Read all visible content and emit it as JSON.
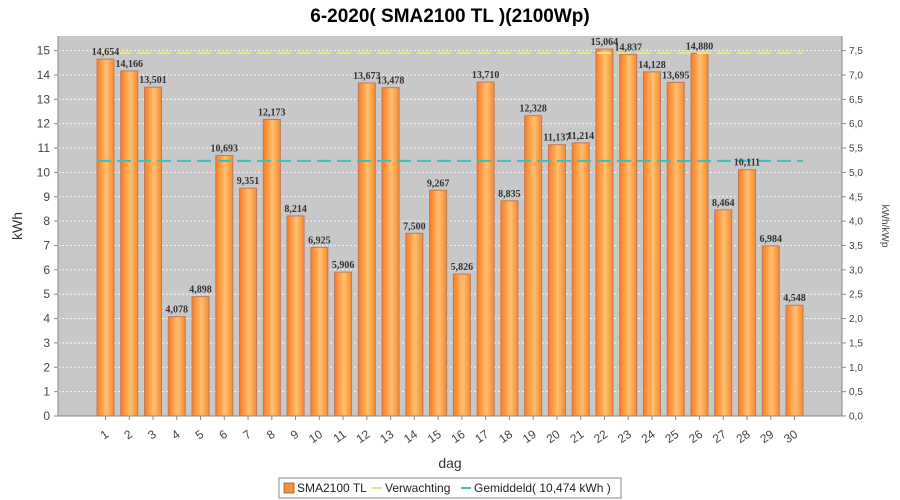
{
  "chart_data": {
    "type": "bar",
    "title": "6-2020( SMA2100 TL )(2100Wp)",
    "xlabel": "dag",
    "ylabel": "kWh",
    "ylabel_right": "kWh/kWp",
    "ylim": [
      0,
      15.6
    ],
    "ylim_right": [
      0,
      7.5
    ],
    "yticks": [
      "0",
      "1",
      "2",
      "3",
      "4",
      "5",
      "6",
      "7",
      "8",
      "9",
      "10",
      "11",
      "12",
      "13",
      "14",
      "15"
    ],
    "yticks_right": [
      "0,0",
      "0,5",
      "1,0",
      "1,5",
      "2,0",
      "2,5",
      "3,0",
      "3,5",
      "4,0",
      "4,5",
      "5,0",
      "5,5",
      "6,0",
      "6,5",
      "7,0",
      "7,5"
    ],
    "categories": [
      "1",
      "2",
      "3",
      "4",
      "5",
      "6",
      "7",
      "8",
      "9",
      "10",
      "11",
      "12",
      "13",
      "14",
      "15",
      "16",
      "17",
      "18",
      "19",
      "20",
      "21",
      "22",
      "23",
      "24",
      "25",
      "26",
      "27",
      "28",
      "29",
      "30"
    ],
    "series": [
      {
        "name": "SMA2100 TL",
        "type": "bar",
        "color": "#f5923e",
        "values": [
          14.654,
          14.166,
          13.501,
          4.078,
          4.898,
          10.693,
          9.351,
          12.173,
          8.214,
          6.925,
          5.906,
          13.673,
          13.478,
          7.5,
          9.267,
          5.826,
          13.71,
          8.835,
          12.328,
          11.137,
          11.214,
          15.064,
          14.837,
          14.128,
          13.695,
          14.88,
          8.464,
          10.111,
          6.984,
          4.548
        ],
        "labels": [
          "14,654",
          "14,166",
          "13,501",
          "4,078",
          "4,898",
          "10,693",
          "9,351",
          "12,173",
          "8,214",
          "6,925",
          "5,906",
          "13,673",
          "13,478",
          "7,500",
          "9,267",
          "5,826",
          "13,710",
          "8,835",
          "12,328",
          "11,137",
          "11,214",
          "15,064",
          "14,837",
          "14,128",
          "13,695",
          "14,880",
          "8,464",
          "10,111",
          "6,984",
          "4,548"
        ]
      },
      {
        "name": "Verwachting",
        "type": "line",
        "color": "#e8e87a",
        "value": 14.9
      },
      {
        "name": "Gemiddeld( 10,474 kWh )",
        "type": "line",
        "color": "#3cc0b8",
        "value": 10.474
      }
    ],
    "grid": true,
    "legend_position": "bottom"
  }
}
